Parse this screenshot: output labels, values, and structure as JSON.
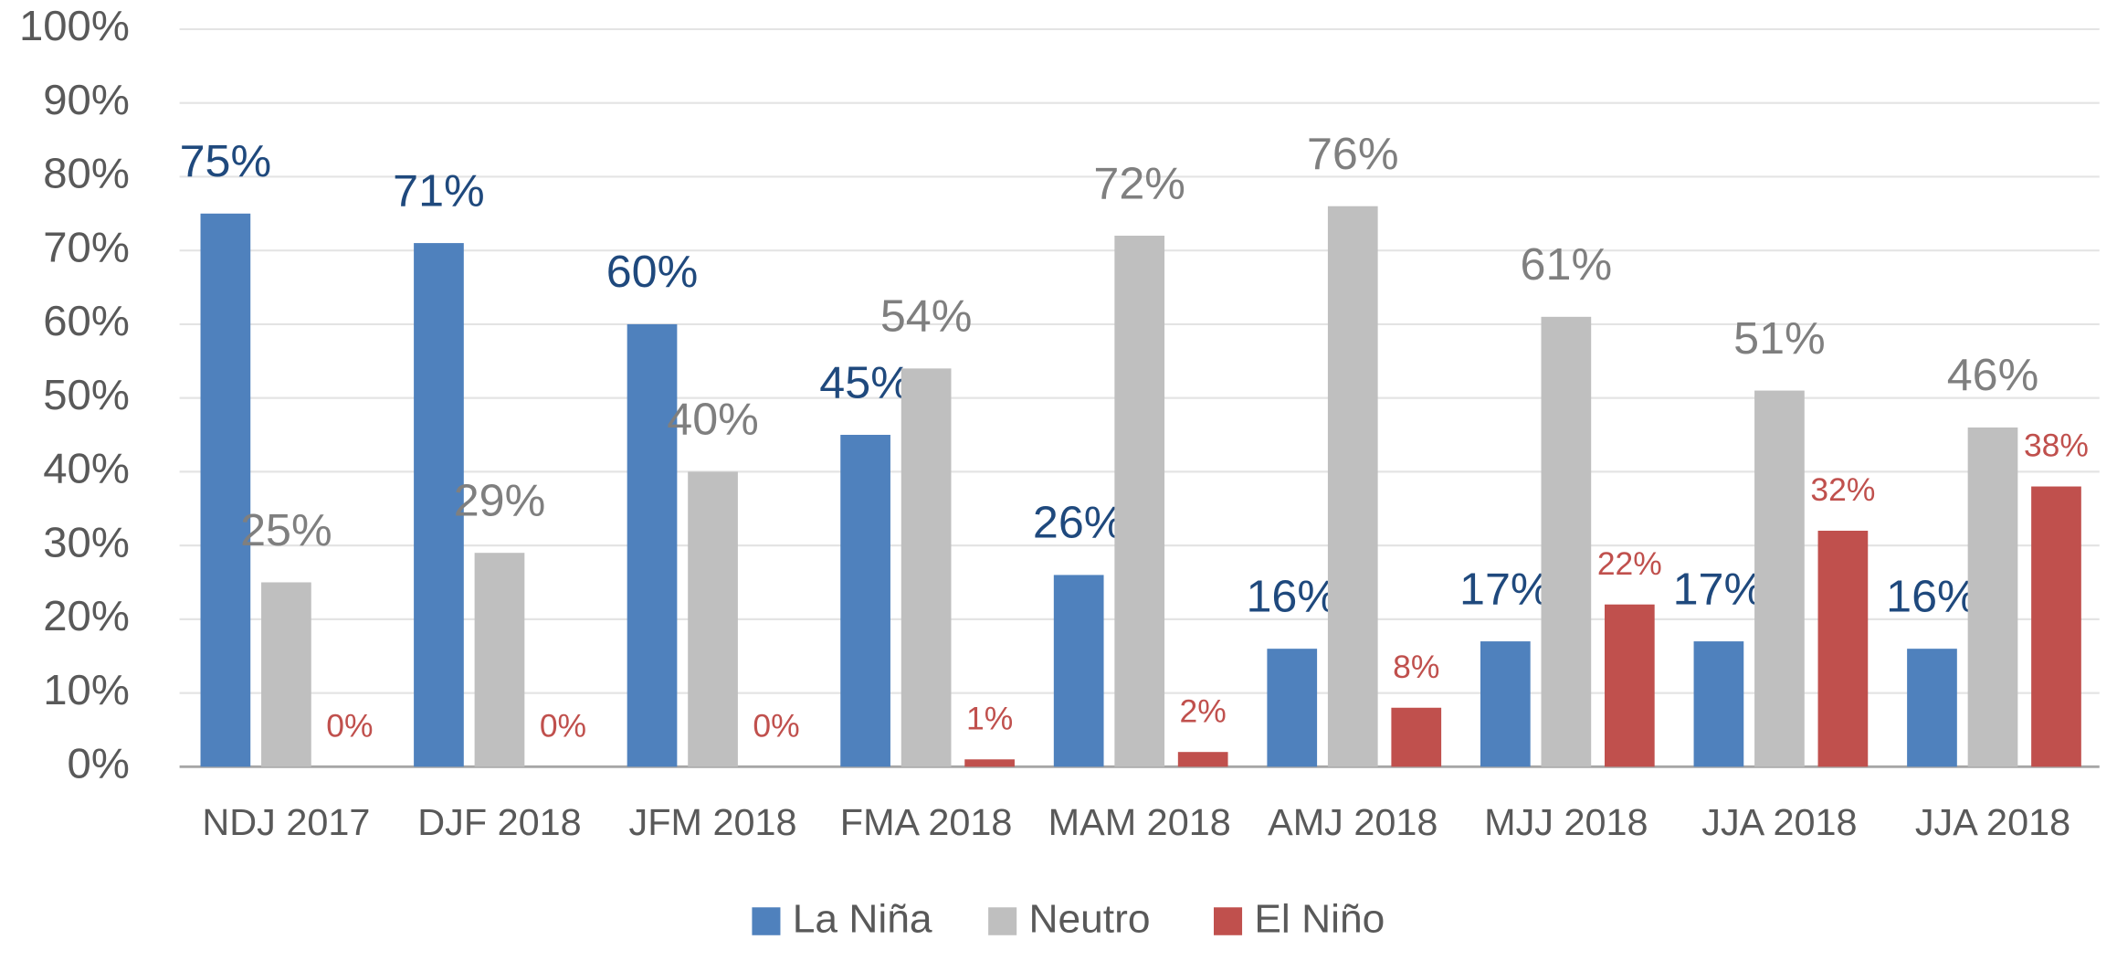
{
  "chart_data": {
    "type": "bar",
    "categories": [
      "NDJ 2017",
      "DJF 2018",
      "JFM 2018",
      "FMA 2018",
      "MAM 2018",
      "AMJ 2018",
      "MJJ 2018",
      "JJA 2018",
      "JJA 2018"
    ],
    "series": [
      {
        "name": "La Niña",
        "color": "#4f81bd",
        "label_color": "#1f497d",
        "values": [
          75,
          71,
          60,
          45,
          26,
          16,
          17,
          17,
          16
        ],
        "value_labels": [
          "75%",
          "71%",
          "60%",
          "45%",
          "26%",
          "16%",
          "17%",
          "17%",
          "16%"
        ]
      },
      {
        "name": "Neutro",
        "color": "#bfbfbf",
        "label_color": "#7f7f7f",
        "values": [
          25,
          29,
          40,
          54,
          72,
          76,
          61,
          51,
          46
        ],
        "value_labels": [
          "25%",
          "29%",
          "40%",
          "54%",
          "72%",
          "76%",
          "61%",
          "51%",
          "46%"
        ]
      },
      {
        "name": "El Niño",
        "color": "#c0504d",
        "label_color": "#c0504d",
        "values": [
          0,
          0,
          0,
          1,
          2,
          8,
          22,
          32,
          38
        ],
        "value_labels": [
          "0%",
          "0%",
          "0%",
          "1%",
          "2%",
          "8%",
          "22%",
          "32%",
          "38%"
        ]
      }
    ],
    "ylim": [
      0,
      100
    ],
    "yticks": [
      {
        "value": 0,
        "label": "0%"
      },
      {
        "value": 10,
        "label": "10%"
      },
      {
        "value": 20,
        "label": "20%"
      },
      {
        "value": 30,
        "label": "30%"
      },
      {
        "value": 40,
        "label": "40%"
      },
      {
        "value": 50,
        "label": "50%"
      },
      {
        "value": 60,
        "label": "60%"
      },
      {
        "value": 70,
        "label": "70%"
      },
      {
        "value": 80,
        "label": "80%"
      },
      {
        "value": 90,
        "label": "90%"
      },
      {
        "value": 100,
        "label": "100%"
      }
    ],
    "grid": true,
    "legend": "bottom"
  }
}
